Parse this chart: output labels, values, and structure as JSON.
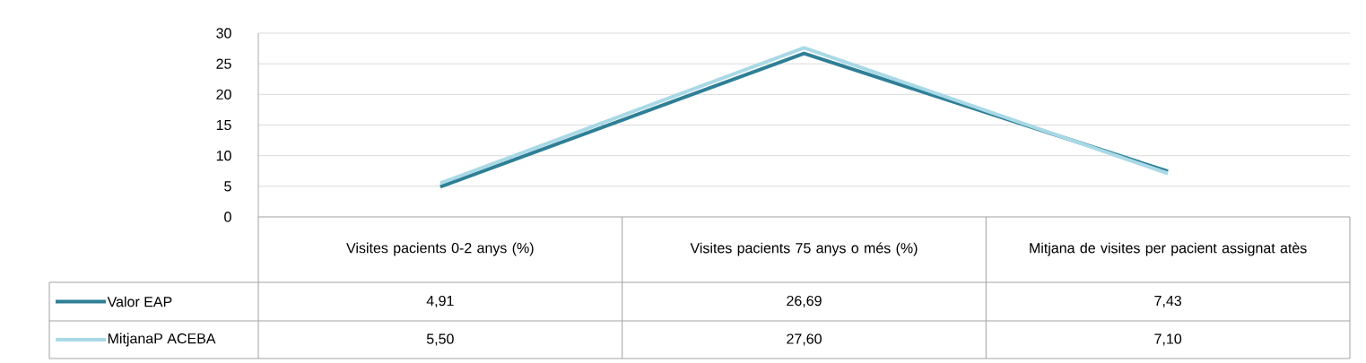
{
  "chart_data": {
    "type": "line",
    "categories": [
      "Visites pacients 0-2 anys (%)",
      "Visites pacients 75 anys o més (%)",
      "Mitjana de visites per pacient assignat atès"
    ],
    "series": [
      {
        "name": "Valor EAP",
        "color": "#2e7f96",
        "values": [
          4.91,
          26.69,
          7.43
        ],
        "value_labels": [
          "4,91",
          "26,69",
          "7,43"
        ]
      },
      {
        "name": "MitjanaP ACEBA",
        "color": "#a9d9e6",
        "values": [
          5.5,
          27.6,
          7.1
        ],
        "value_labels": [
          "5,50",
          "27,60",
          "7,10"
        ]
      }
    ],
    "ylim": [
      0,
      30
    ],
    "yticks": [
      0,
      5,
      10,
      15,
      20,
      25,
      30
    ],
    "grid": "y",
    "legend": "bottom left",
    "marker": "none",
    "line_style": "solid"
  }
}
